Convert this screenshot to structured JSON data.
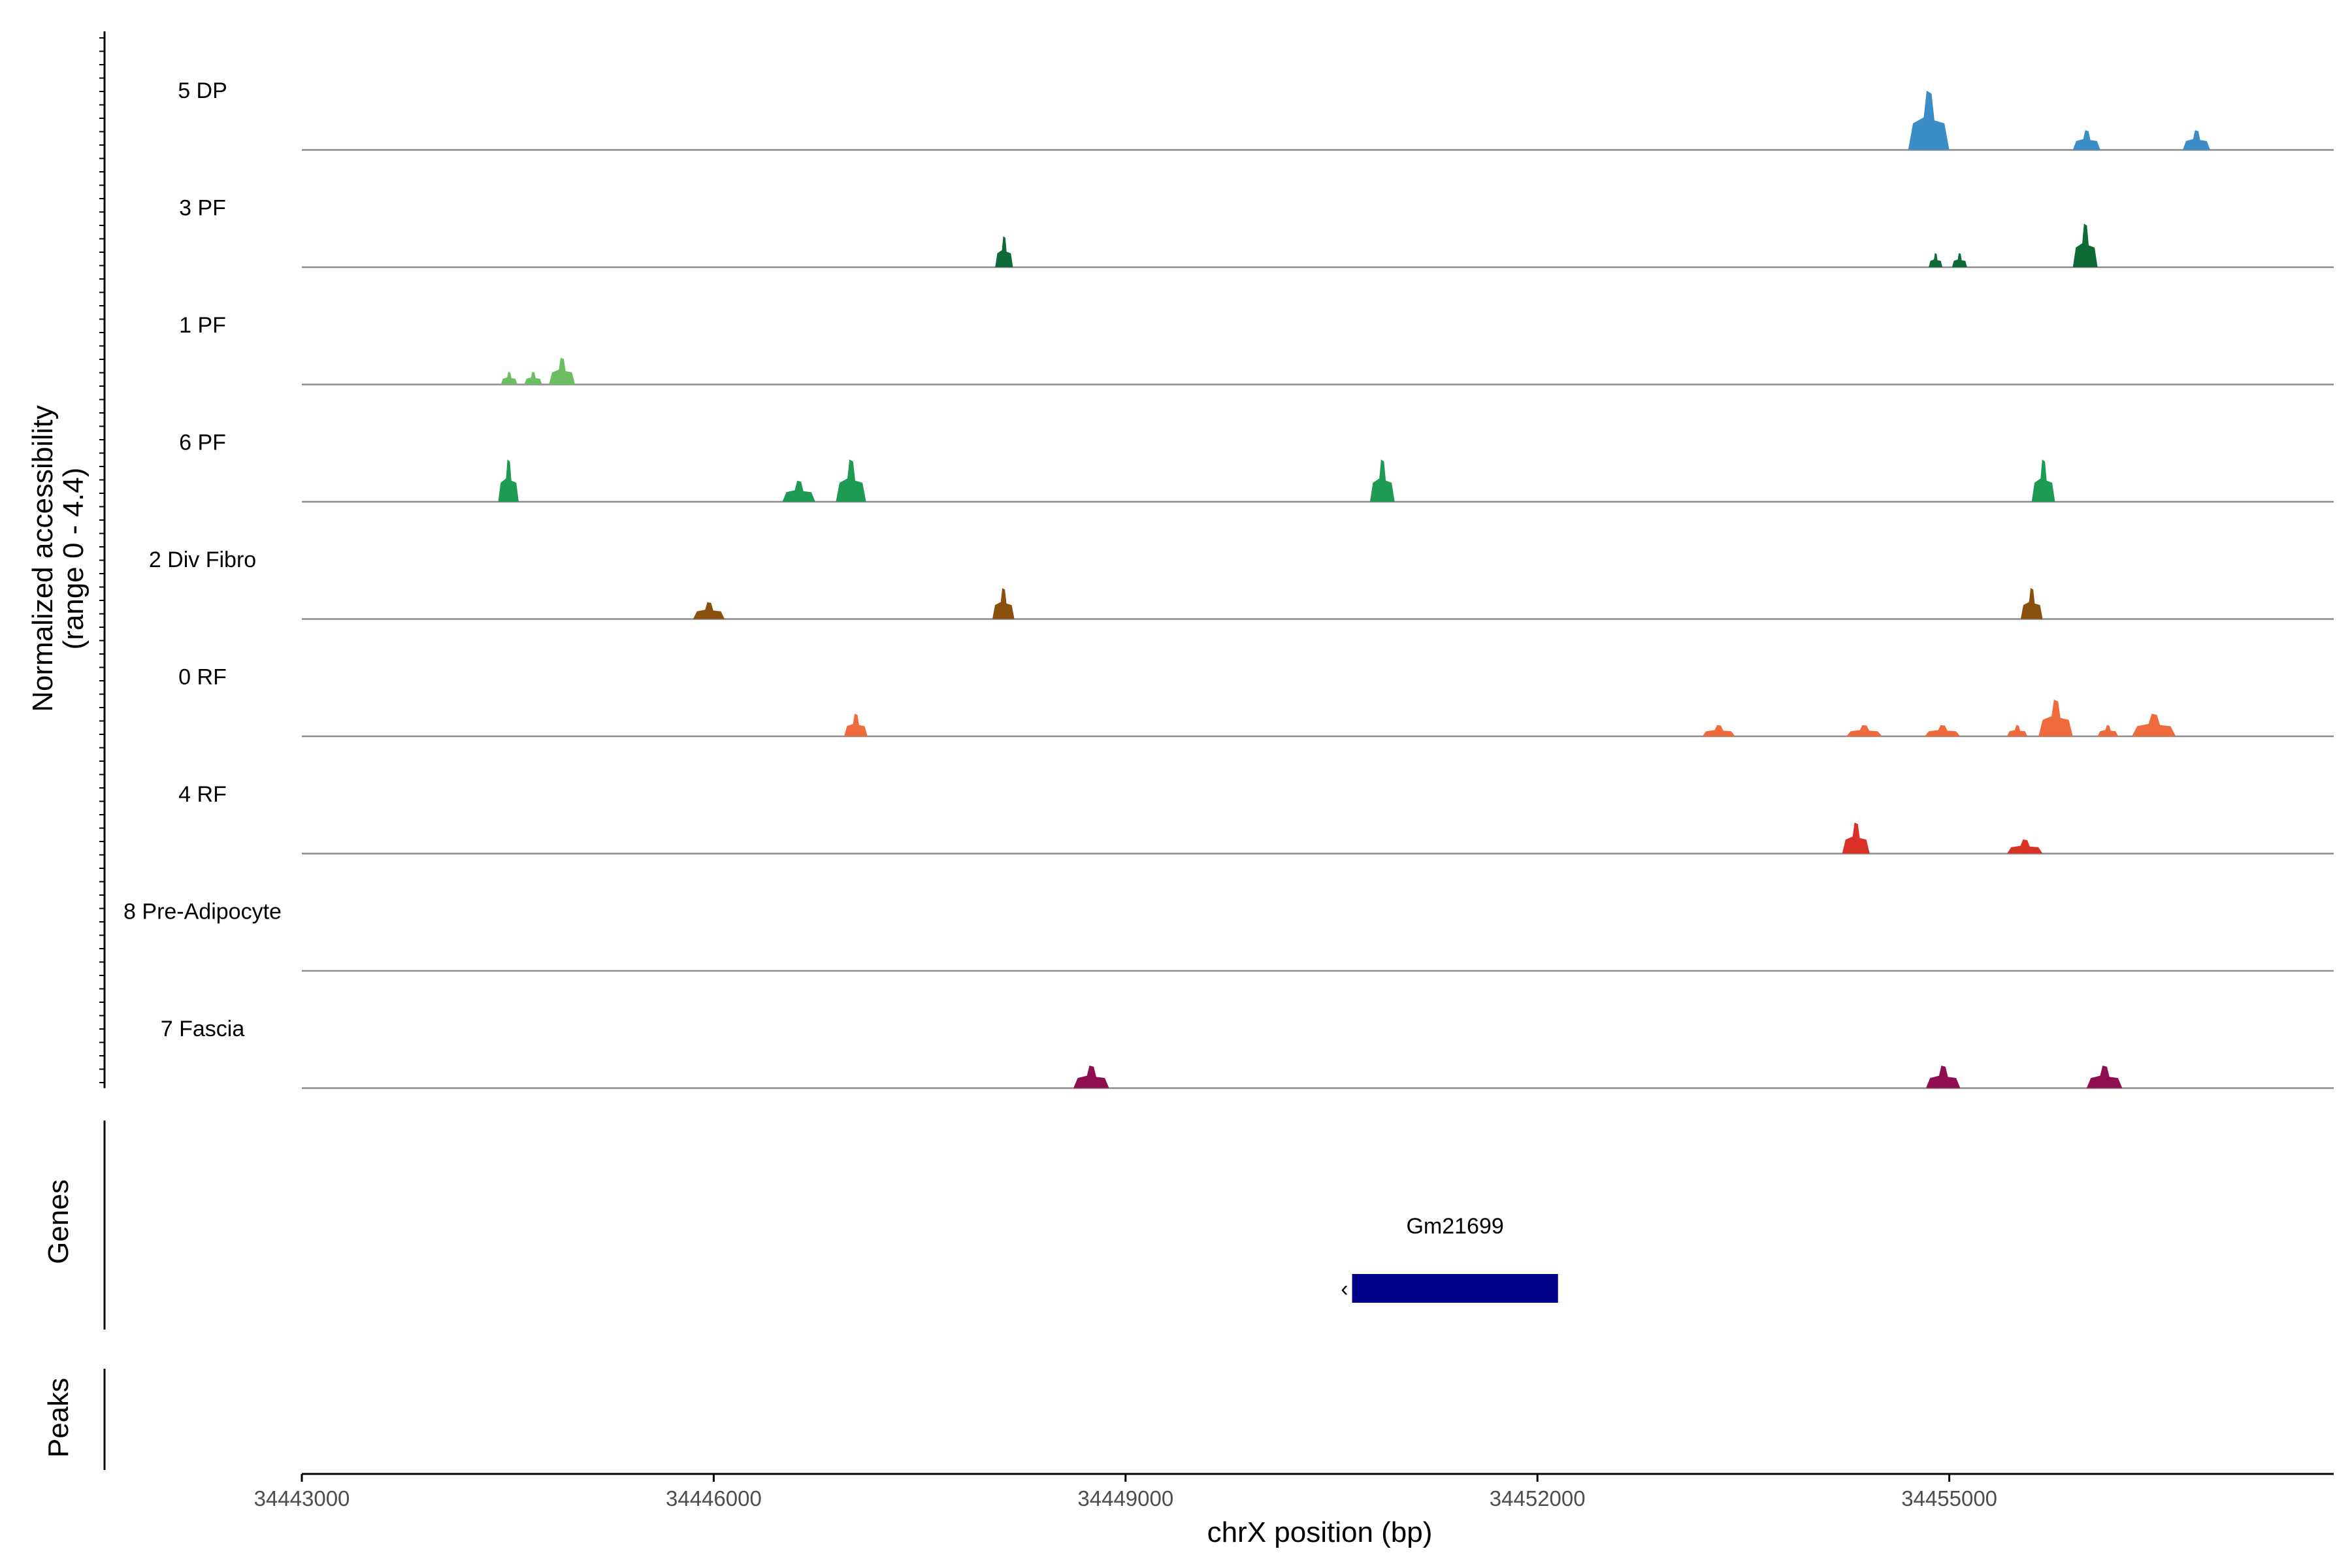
{
  "chart_data": {
    "type": "area",
    "ylabel_line1": "Normalized accessibility",
    "ylabel_line2": "(range 0 - 4.4)",
    "xlabel": "chrX position (bp)",
    "x_ticks": [
      "34443000",
      "34446000",
      "34449000",
      "34452000",
      "34455000"
    ],
    "x_tick_values": [
      34443000,
      34446000,
      34449000,
      34452000,
      34455000
    ],
    "xlim": [
      34443000,
      34457800
    ],
    "ylim": [
      0,
      4.4
    ],
    "tracks": [
      {
        "name": "5 DP",
        "color": "#3B8DC6",
        "peaks": [
          {
            "x0": 34454700,
            "x1": 34455000,
            "max": 4.2
          },
          {
            "x0": 34455900,
            "x1": 34456100,
            "max": 1.4
          },
          {
            "x0": 34456700,
            "x1": 34456900,
            "max": 1.4
          }
        ]
      },
      {
        "name": "3 PF",
        "color": "#0E6B38",
        "peaks": [
          {
            "x0": 34448050,
            "x1": 34448180,
            "max": 2.2
          },
          {
            "x0": 34454850,
            "x1": 34454950,
            "max": 1.0
          },
          {
            "x0": 34455020,
            "x1": 34455130,
            "max": 1.0
          },
          {
            "x0": 34455900,
            "x1": 34456080,
            "max": 3.1
          }
        ]
      },
      {
        "name": "1 PF",
        "color": "#6BBF62",
        "peaks": [
          {
            "x0": 34444450,
            "x1": 34444570,
            "max": 0.9
          },
          {
            "x0": 34444620,
            "x1": 34444750,
            "max": 0.9
          },
          {
            "x0": 34444800,
            "x1": 34444990,
            "max": 1.9
          }
        ]
      },
      {
        "name": "6 PF",
        "color": "#1E9B53",
        "peaks": [
          {
            "x0": 34444430,
            "x1": 34444580,
            "max": 3.0
          },
          {
            "x0": 34446500,
            "x1": 34446740,
            "max": 1.5
          },
          {
            "x0": 34446890,
            "x1": 34447110,
            "max": 3.0
          },
          {
            "x0": 34450780,
            "x1": 34450960,
            "max": 3.0
          },
          {
            "x0": 34455600,
            "x1": 34455770,
            "max": 3.0
          }
        ]
      },
      {
        "name": "2 Div Fibro",
        "color": "#8B4F0E",
        "peaks": [
          {
            "x0": 34445850,
            "x1": 34446080,
            "max": 1.2
          },
          {
            "x0": 34448030,
            "x1": 34448190,
            "max": 2.2
          },
          {
            "x0": 34455520,
            "x1": 34455680,
            "max": 2.2
          }
        ]
      },
      {
        "name": "0 RF",
        "color": "#EF6B3D",
        "peaks": [
          {
            "x0": 34446950,
            "x1": 34447120,
            "max": 1.6
          },
          {
            "x0": 34453200,
            "x1": 34453440,
            "max": 0.8
          },
          {
            "x0": 34454250,
            "x1": 34454510,
            "max": 0.8
          },
          {
            "x0": 34454820,
            "x1": 34455080,
            "max": 0.8
          },
          {
            "x0": 34455420,
            "x1": 34455570,
            "max": 0.8
          },
          {
            "x0": 34455650,
            "x1": 34455900,
            "max": 2.6
          },
          {
            "x0": 34456080,
            "x1": 34456230,
            "max": 0.8
          },
          {
            "x0": 34456330,
            "x1": 34456650,
            "max": 1.6
          }
        ]
      },
      {
        "name": "4 RF",
        "color": "#D93126",
        "peaks": [
          {
            "x0": 34454220,
            "x1": 34454420,
            "max": 2.2
          },
          {
            "x0": 34455420,
            "x1": 34455680,
            "max": 1.0
          }
        ]
      },
      {
        "name": "8 Pre-Adipocyte",
        "color": "#7F7F7F",
        "peaks": []
      },
      {
        "name": "7 Fascia",
        "color": "#8E0E4F",
        "peaks": [
          {
            "x0": 34448620,
            "x1": 34448880,
            "max": 1.6
          },
          {
            "x0": 34454830,
            "x1": 34455080,
            "max": 1.6
          },
          {
            "x0": 34456000,
            "x1": 34456260,
            "max": 1.6
          }
        ]
      }
    ],
    "genes_label": "Genes",
    "peaks_label": "Peaks",
    "genes": [
      {
        "name": "Gm21699",
        "start": 34450650,
        "end": 34452150,
        "strand": "-",
        "color": "#00008B"
      }
    ]
  }
}
